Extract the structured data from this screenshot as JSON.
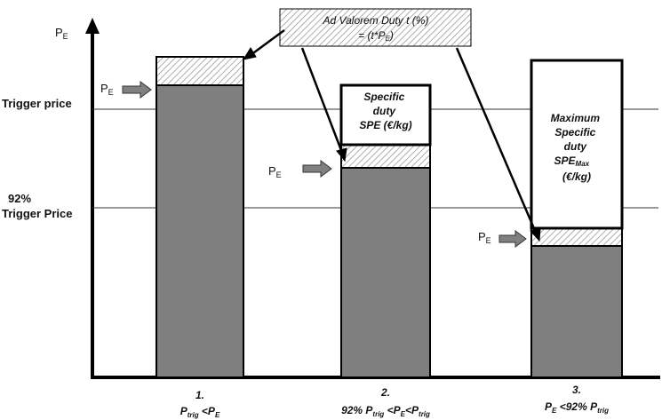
{
  "axis": {
    "y_label": "P",
    "y_label_sub": "E"
  },
  "reference_lines": [
    {
      "id": "trigger",
      "label_lines": [
        "Trigger price"
      ]
    },
    {
      "id": "trigger92",
      "label_lines": [
        "92%",
        "Trigger Price"
      ]
    }
  ],
  "callout": {
    "line1": "Ad Valorem Duty t (%)",
    "line2_prefix": "= (t*P",
    "line2_sub": "E",
    "line2_suffix": ")"
  },
  "pe_arrow_label": {
    "main": "P",
    "sub": "E"
  },
  "bars": [
    {
      "caption_number": "1.",
      "caption_parts": [
        {
          "text": "P",
          "style": "normal"
        },
        {
          "text": "trig",
          "style": "sub"
        },
        {
          "text": " <P",
          "style": "normal"
        },
        {
          "text": "E",
          "style": "sub"
        }
      ],
      "white_label_lines": []
    },
    {
      "caption_number": "2.",
      "caption_parts": [
        {
          "text": "92% P",
          "style": "normal"
        },
        {
          "text": "trig",
          "style": "sub"
        },
        {
          "text": " <P",
          "style": "normal"
        },
        {
          "text": "E",
          "style": "sub"
        },
        {
          "text": "<P",
          "style": "normal"
        },
        {
          "text": "trig",
          "style": "sub"
        }
      ],
      "white_label_lines": [
        {
          "text": "Specific"
        },
        {
          "text": "duty"
        },
        {
          "text": "SPE (€/kg)"
        }
      ]
    },
    {
      "caption_number": "3.",
      "caption_parts": [
        {
          "text": "P",
          "style": "normal"
        },
        {
          "text": "E",
          "style": "sub"
        },
        {
          "text": " <92% P",
          "style": "normal"
        },
        {
          "text": "trig",
          "style": "sub"
        }
      ],
      "white_label_lines": [
        {
          "text": "Maximum"
        },
        {
          "text": "Specific"
        },
        {
          "text": "duty"
        },
        {
          "text": "SPE",
          "sub": "Max"
        },
        {
          "text": "(€/kg)"
        }
      ]
    }
  ],
  "colors": {
    "bar_fill": "#7f7f7f",
    "arrow_fill": "#808080",
    "hatch_line": "#999999",
    "outline": "#000000",
    "gridline": "#333333"
  }
}
